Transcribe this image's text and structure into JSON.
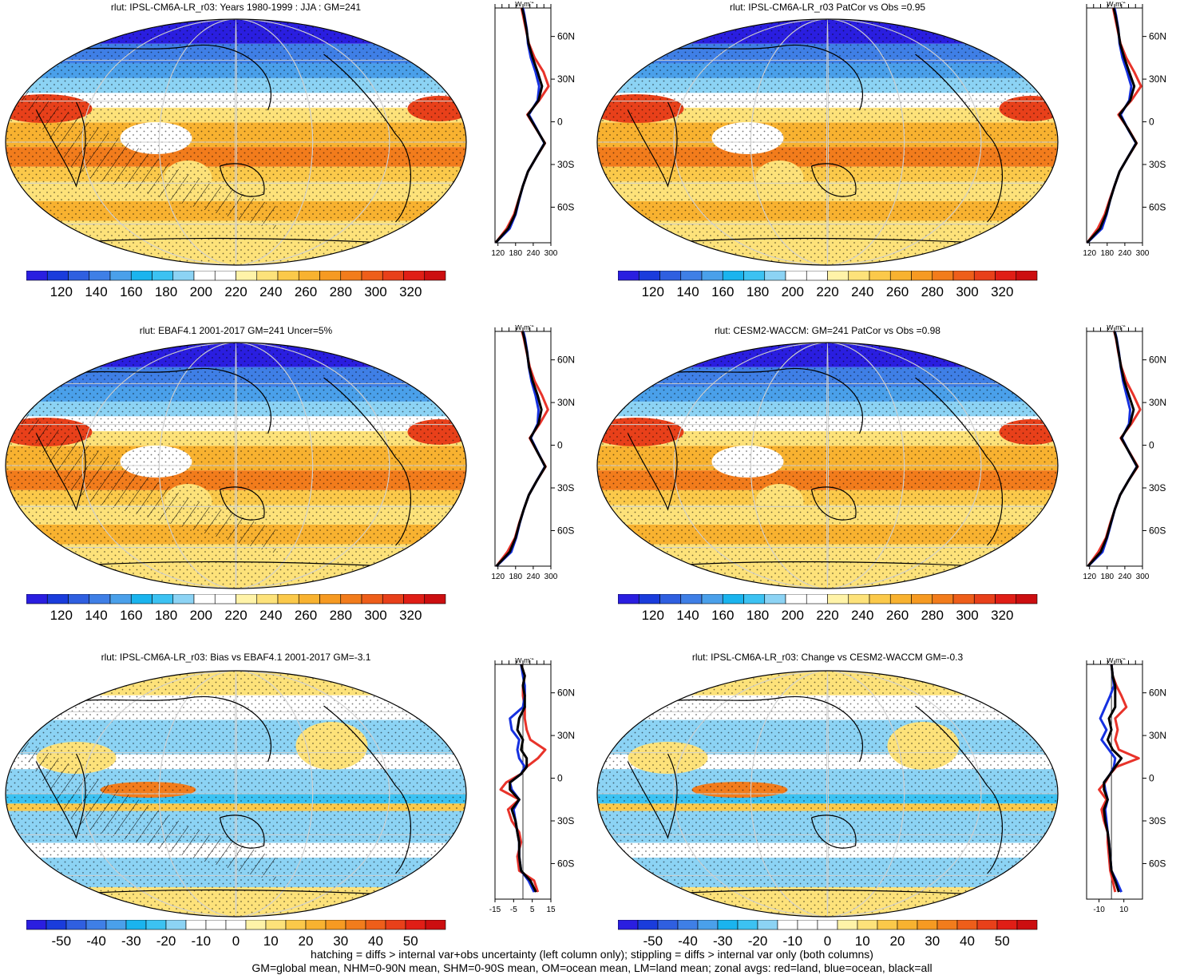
{
  "colors": {
    "abs_scale": [
      "#2a1ee0",
      "#1a3cdc",
      "#2f5fe0",
      "#3f7fe6",
      "#4aa0ea",
      "#1ab4ee",
      "#3cc2f2",
      "#8cd3f4",
      "#ffffff",
      "#ffffff",
      "#fff3a8",
      "#fde27a",
      "#fbc94a",
      "#f8b230",
      "#f69a22",
      "#f27c1c",
      "#ee5e1a",
      "#e8401a",
      "#e01e16",
      "#cc0e10"
    ],
    "diff_scale": [
      "#2a1ee0",
      "#1a3cdc",
      "#2f5fe0",
      "#3f7fe6",
      "#4aa0ea",
      "#1ab4ee",
      "#3cc2f2",
      "#8cd3f4",
      "#ffffff",
      "#ffffff",
      "#ffffff",
      "#fff3a8",
      "#fde27a",
      "#fbc94a",
      "#f8b230",
      "#f69a22",
      "#f27c1c",
      "#ee5e1a",
      "#e8401a",
      "#e01e16",
      "#cc0e10"
    ],
    "land": "#e8332a",
    "ocean": "#1530e0",
    "all": "#000000"
  },
  "chart_data": [
    {
      "type": "heatmap",
      "title": "rlut: IPSL-CM6A-LR_r03: Years 1980-1999 : JJA : GM=241",
      "colorbar_ticks": [
        "120",
        "140",
        "160",
        "180",
        "200",
        "220",
        "240",
        "260",
        "280",
        "300",
        "320"
      ],
      "profile": {
        "unit": "W m",
        "unit_sup": "-2",
        "lat_ticks": [
          "60N",
          "30N",
          "0",
          "30S",
          "60S"
        ],
        "lat_values": [
          60,
          30,
          0,
          -30,
          -60
        ],
        "x_ticks": [
          "120",
          "180",
          "240",
          "300"
        ],
        "xlim": [
          110,
          300
        ],
        "lat": [
          -85,
          -75,
          -65,
          -55,
          -45,
          -35,
          -25,
          -15,
          -5,
          5,
          15,
          25,
          35,
          45,
          55,
          65,
          75,
          80
        ],
        "land": [
          112,
          150,
          175,
          190,
          205,
          222,
          250,
          280,
          250,
          220,
          260,
          292,
          275,
          245,
          225,
          215,
          205,
          200
        ],
        "ocean": [
          112,
          160,
          180,
          192,
          205,
          222,
          250,
          278,
          252,
          225,
          255,
          260,
          248,
          232,
          222,
          218,
          210,
          205
        ],
        "all": [
          112,
          155,
          178,
          191,
          205,
          222,
          250,
          279,
          251,
          222,
          258,
          270,
          255,
          238,
          224,
          217,
          208,
          202
        ]
      }
    },
    {
      "type": "heatmap",
      "title": "rlut: IPSL-CM6A-LR_r03 PatCor vs Obs =0.95",
      "colorbar_ticks": [
        "120",
        "140",
        "160",
        "180",
        "200",
        "220",
        "240",
        "260",
        "280",
        "300",
        "320"
      ],
      "profile": {
        "unit": "W m",
        "unit_sup": "-2",
        "lat_ticks": [
          "60N",
          "30N",
          "0",
          "30S",
          "60S"
        ],
        "lat_values": [
          60,
          30,
          0,
          -30,
          -60
        ],
        "x_ticks": [
          "120",
          "180",
          "240",
          "300"
        ],
        "xlim": [
          110,
          300
        ],
        "lat": [
          -85,
          -75,
          -65,
          -55,
          -45,
          -35,
          -25,
          -15,
          -5,
          5,
          15,
          25,
          35,
          45,
          55,
          65,
          75,
          80
        ],
        "land": [
          112,
          148,
          172,
          188,
          205,
          222,
          250,
          280,
          252,
          218,
          262,
          295,
          272,
          245,
          225,
          215,
          205,
          200
        ],
        "ocean": [
          112,
          162,
          178,
          190,
          205,
          222,
          250,
          278,
          250,
          226,
          255,
          262,
          248,
          232,
          222,
          218,
          210,
          205
        ],
        "all": [
          112,
          156,
          176,
          190,
          205,
          222,
          250,
          279,
          251,
          222,
          258,
          272,
          255,
          238,
          224,
          217,
          208,
          202
        ]
      }
    },
    {
      "type": "heatmap",
      "title": "rlut: EBAF4.1 2001-2017 GM=241 Uncer=5%",
      "colorbar_ticks": [
        "120",
        "140",
        "160",
        "180",
        "200",
        "220",
        "240",
        "260",
        "280",
        "300",
        "320"
      ],
      "profile": {
        "unit": "W m",
        "unit_sup": "-2",
        "lat_ticks": [
          "60N",
          "30N",
          "0",
          "30S",
          "60S"
        ],
        "lat_values": [
          60,
          30,
          0,
          -30,
          -60
        ],
        "x_ticks": [
          "120",
          "180",
          "240",
          "300"
        ],
        "xlim": [
          110,
          300
        ],
        "lat": [
          -85,
          -75,
          -65,
          -55,
          -45,
          -35,
          -25,
          -15,
          -5,
          5,
          15,
          25,
          35,
          45,
          55,
          65,
          75,
          80
        ],
        "land": [
          115,
          152,
          178,
          192,
          208,
          225,
          252,
          282,
          255,
          228,
          262,
          290,
          270,
          245,
          228,
          218,
          208,
          202
        ],
        "ocean": [
          115,
          165,
          182,
          194,
          208,
          225,
          252,
          280,
          256,
          232,
          255,
          258,
          248,
          234,
          225,
          220,
          212,
          206
        ],
        "all": [
          115,
          160,
          180,
          193,
          208,
          225,
          252,
          281,
          255,
          230,
          258,
          268,
          255,
          238,
          226,
          219,
          210,
          204
        ]
      }
    },
    {
      "type": "heatmap",
      "title": "rlut: CESM2-WACCM: GM=241 PatCor vs Obs =0.98",
      "colorbar_ticks": [
        "120",
        "140",
        "160",
        "180",
        "200",
        "220",
        "240",
        "260",
        "280",
        "300",
        "320"
      ],
      "profile": {
        "unit": "W m",
        "unit_sup": "-2",
        "lat_ticks": [
          "60N",
          "30N",
          "0",
          "30S",
          "60S"
        ],
        "lat_values": [
          60,
          30,
          0,
          -30,
          -60
        ],
        "x_ticks": [
          "120",
          "180",
          "240",
          "300"
        ],
        "xlim": [
          110,
          300
        ],
        "lat": [
          -85,
          -75,
          -65,
          -55,
          -45,
          -35,
          -25,
          -15,
          -5,
          5,
          15,
          25,
          35,
          45,
          55,
          65,
          75,
          80
        ],
        "land": [
          115,
          150,
          176,
          190,
          206,
          224,
          252,
          284,
          256,
          226,
          262,
          292,
          270,
          245,
          228,
          218,
          210,
          204
        ],
        "ocean": [
          115,
          164,
          180,
          193,
          206,
          224,
          252,
          281,
          255,
          230,
          254,
          258,
          246,
          234,
          226,
          220,
          212,
          206
        ],
        "all": [
          115,
          158,
          178,
          192,
          206,
          224,
          252,
          282,
          255,
          228,
          258,
          270,
          254,
          238,
          227,
          219,
          211,
          205
        ]
      }
    },
    {
      "type": "heatmap",
      "title": "rlut: IPSL-CM6A-LR_r03: Bias vs EBAF4.1 2001-2017 GM=-3.1",
      "colorbar_ticks": [
        "-50",
        "-40",
        "-30",
        "-20",
        "-10",
        "0",
        "10",
        "20",
        "30",
        "40",
        "50"
      ],
      "profile": {
        "unit": "W m",
        "unit_sup": "-2",
        "lat_ticks": [
          "60N",
          "30N",
          "0",
          "30S",
          "60S"
        ],
        "lat_values": [
          60,
          30,
          0,
          -30,
          -60
        ],
        "x_ticks": [
          "-15",
          "-5",
          "5",
          "15"
        ],
        "xlim": [
          -15,
          15
        ],
        "zero_line": 0,
        "lat": [
          -80,
          -72,
          -65,
          -55,
          -45,
          -38,
          -30,
          -22,
          -15,
          -8,
          -3,
          3,
          8,
          14,
          20,
          27,
          34,
          42,
          50,
          58,
          65,
          72,
          80
        ],
        "land": [
          8,
          6,
          -2,
          -3,
          -1,
          -2,
          -6,
          -8,
          -2,
          -12,
          -9,
          -1,
          2,
          8,
          12,
          4,
          2,
          1,
          1,
          0,
          0,
          1,
          -1
        ],
        "ocean": [
          6,
          3,
          -1,
          -2,
          -2,
          -3,
          -4,
          -5,
          -2,
          -6,
          -7,
          -1,
          1,
          -2,
          -3,
          -2,
          -6,
          -7,
          0,
          1,
          1,
          0,
          -1
        ],
        "all": [
          7,
          4,
          -1,
          -2,
          -2,
          -3,
          -4,
          -6,
          -2,
          -7,
          -7,
          -1,
          2,
          2,
          -1,
          0,
          -3,
          -2,
          1,
          1,
          0,
          1,
          -1
        ]
      }
    },
    {
      "type": "heatmap",
      "title": "rlut: IPSL-CM6A-LR_r03: Change vs CESM2-WACCM GM=-0.3",
      "colorbar_ticks": [
        "-50",
        "-40",
        "-30",
        "-20",
        "-10",
        "0",
        "10",
        "20",
        "30",
        "40",
        "50"
      ],
      "profile": {
        "unit": "W m",
        "unit_sup": "-2",
        "lat_ticks": [
          "60N",
          "30N",
          "0",
          "30S",
          "60S"
        ],
        "lat_values": [
          60,
          30,
          0,
          -30,
          -60
        ],
        "x_ticks": [
          "-10",
          "10"
        ],
        "xlim": [
          -20,
          25
        ],
        "zero_line": 0,
        "lat": [
          -80,
          -72,
          -65,
          -55,
          -45,
          -38,
          -30,
          -22,
          -15,
          -8,
          -3,
          3,
          8,
          14,
          20,
          27,
          34,
          42,
          50,
          58,
          65,
          72,
          80
        ],
        "land": [
          3,
          1,
          -1,
          -2,
          -3,
          -3,
          -6,
          -8,
          -4,
          -10,
          -5,
          -1,
          4,
          22,
          6,
          3,
          5,
          3,
          12,
          8,
          4,
          1,
          0
        ],
        "ocean": [
          8,
          4,
          0,
          -1,
          -2,
          -3,
          -4,
          -5,
          -3,
          -5,
          -6,
          -1,
          2,
          3,
          -2,
          -8,
          -4,
          -9,
          -5,
          -1,
          2,
          1,
          0
        ],
        "all": [
          6,
          3,
          0,
          -1,
          -2,
          -3,
          -5,
          -6,
          -3,
          -6,
          -6,
          -1,
          3,
          8,
          1,
          -3,
          0,
          -2,
          3,
          3,
          3,
          1,
          0
        ]
      }
    }
  ],
  "footer": {
    "line1": "hatching = diffs > internal var+obs uncertainty (left column only); stippling = diffs > internal var only (both columns)",
    "line2": "GM=global mean, NHM=0-90N mean, SHM=0-90S mean, OM=ocean mean, LM=land mean; zonal avgs: red=land, blue=ocean, black=all"
  }
}
